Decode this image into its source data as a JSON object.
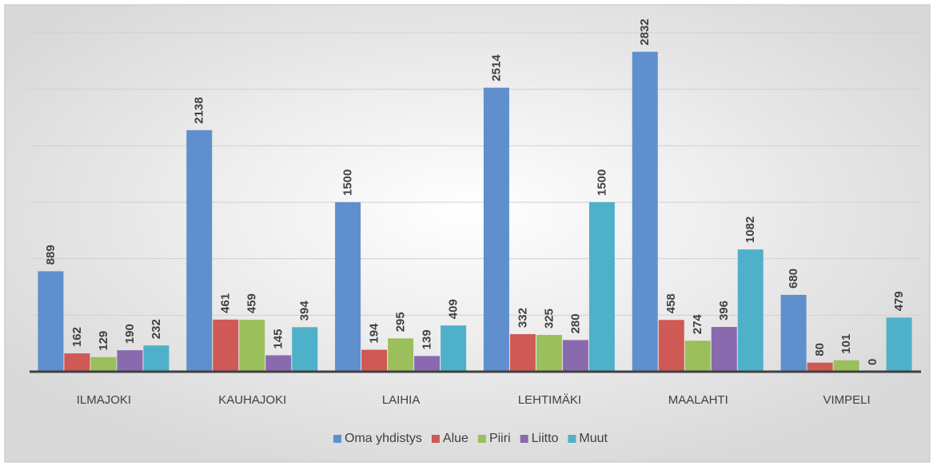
{
  "chart_data": {
    "type": "bar",
    "categories": [
      "ILMAJOKI",
      "KAUHAJOKI",
      "LAIHIA",
      "LEHTIMÄKI",
      "MAALAHTI",
      "VIMPELI"
    ],
    "series": [
      {
        "name": "Oma yhdistys",
        "color": "#5f8fcd",
        "values": [
          889,
          2138,
          1500,
          2514,
          2832,
          680
        ]
      },
      {
        "name": "Alue",
        "color": "#cf5955",
        "values": [
          162,
          461,
          194,
          332,
          458,
          80
        ]
      },
      {
        "name": "Piiri",
        "color": "#9bbf5a",
        "values": [
          129,
          459,
          295,
          325,
          274,
          101
        ]
      },
      {
        "name": "Liitto",
        "color": "#8a6aaf",
        "values": [
          190,
          145,
          139,
          280,
          396,
          0
        ]
      },
      {
        "name": "Muut",
        "color": "#4fb1c9",
        "values": [
          232,
          394,
          409,
          1500,
          1082,
          479
        ]
      }
    ],
    "ylim": [
      0,
      3000
    ],
    "yticks": [
      0,
      500,
      1000,
      1500,
      2000,
      2500,
      3000
    ],
    "grid": true,
    "legend": "bottom"
  }
}
